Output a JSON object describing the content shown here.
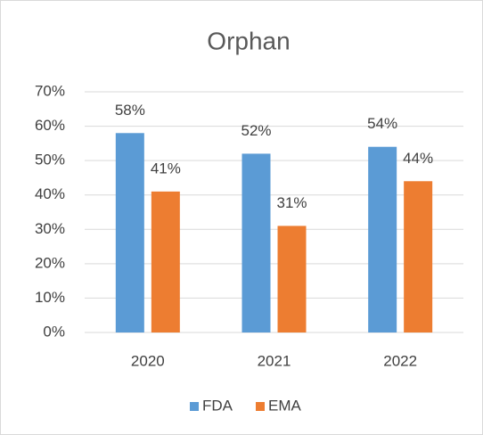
{
  "chart_data": {
    "type": "bar",
    "title": "Orphan",
    "categories": [
      "2020",
      "2021",
      "2022"
    ],
    "series": [
      {
        "name": "FDA",
        "color": "#5b9bd5",
        "values": [
          58,
          52,
          54
        ],
        "value_labels": [
          "58%",
          "52%",
          "54%"
        ]
      },
      {
        "name": "EMA",
        "color": "#ed7d31",
        "values": [
          41,
          31,
          44
        ],
        "value_labels": [
          "41%",
          "31%",
          "44%"
        ]
      }
    ],
    "ylim": [
      0,
      70
    ],
    "yticks": [
      {
        "value": 0,
        "label": "0%"
      },
      {
        "value": 10,
        "label": "10%"
      },
      {
        "value": 20,
        "label": "20%"
      },
      {
        "value": 30,
        "label": "30%"
      },
      {
        "value": 40,
        "label": "40%"
      },
      {
        "value": 50,
        "label": "50%"
      },
      {
        "value": 60,
        "label": "60%"
      },
      {
        "value": 70,
        "label": "70%"
      }
    ],
    "grid": true,
    "legend": "bottom"
  }
}
